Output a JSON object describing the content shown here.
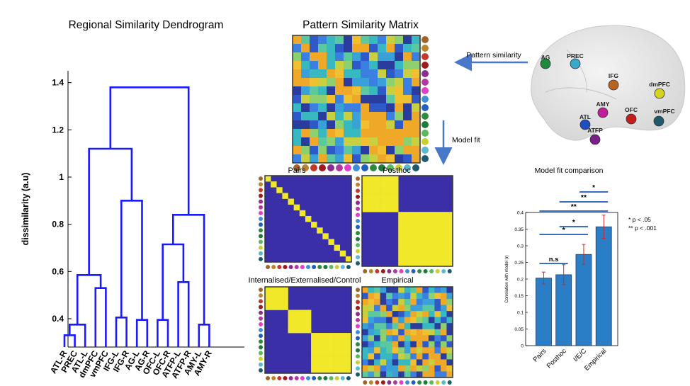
{
  "titles": {
    "dendrogram": "Regional Similarity Dendrogram",
    "matrix": "Pattern Similarity Matrix"
  },
  "arrows": {
    "pattern_similarity": "Pattern similarity",
    "model_fit": "Model fit"
  },
  "brain": {
    "regions": [
      {
        "label": "AG",
        "color": "#1e8a3a"
      },
      {
        "label": "PREC",
        "color": "#3aa9c7"
      },
      {
        "label": "IFG",
        "color": "#b8641e"
      },
      {
        "label": "dmPFC",
        "color": "#d4d41e"
      },
      {
        "label": "AMY",
        "color": "#c21e9c"
      },
      {
        "label": "OFC",
        "color": "#c21e1e"
      },
      {
        "label": "vmPFC",
        "color": "#1e5a6e"
      },
      {
        "label": "ATL",
        "color": "#1e4fc2"
      },
      {
        "label": "ATFP",
        "color": "#7a1e8a"
      }
    ]
  },
  "rdm": {
    "region_colors": [
      "#a0642a",
      "#b8862e",
      "#c0392b",
      "#9b1c1c",
      "#8e2c8e",
      "#b03aa0",
      "#e23ec8",
      "#3f8fd8",
      "#1f5fc0",
      "#2e8b3e",
      "#1e7a3a",
      "#5cb85c",
      "#c8d030",
      "#5ab8d0",
      "#1e5a6e"
    ],
    "small_titles": {
      "pairs": "Pairs",
      "posthoc": "Posthoc",
      "iec": "Internalised/Externalised/Control",
      "empirical": "Empirical"
    }
  },
  "dendrogram": {
    "leaves": [
      "ATL-R",
      "PREC",
      "ATL-L",
      "dmPFC",
      "vmPFC",
      "IFG-L",
      "IFG-R",
      "AG-L",
      "AG-R",
      "OFC-L",
      "OFC-R",
      "ATFP-L",
      "ATFP-R",
      "AMY-L",
      "AMY-R"
    ],
    "ylabel": "dissimilarity (a.u)",
    "yticks": [
      "0.4",
      "0.6",
      "0.8",
      "1",
      "1.2",
      "1.4"
    ],
    "color": "#1a1aff"
  },
  "bar_panel": {
    "title": "Model fit comparison",
    "legend": [
      "* p < .05",
      "** p < .001"
    ],
    "sig_labels": [
      "n.s",
      "*",
      "*",
      "**",
      "**",
      "*"
    ]
  },
  "chart_data": [
    {
      "type": "dendrogram",
      "title": "Regional Similarity Dendrogram",
      "ylabel": "dissimilarity (a.u)",
      "ylim": [
        0.28,
        1.45
      ],
      "leaves": [
        "ATL-R",
        "PREC",
        "ATL-L",
        "dmPFC",
        "vmPFC",
        "IFG-L",
        "IFG-R",
        "AG-L",
        "AG-R",
        "OFC-L",
        "OFC-R",
        "ATFP-L",
        "ATFP-R",
        "AMY-L",
        "AMY-R"
      ],
      "merges": [
        {
          "left": "ATL-R",
          "right": "PREC",
          "height": 0.33
        },
        {
          "left": "m0",
          "right": "ATL-L",
          "height": 0.375
        },
        {
          "left": "dmPFC",
          "right": "vmPFC",
          "height": 0.53
        },
        {
          "left": "m1",
          "right": "m2",
          "height": 0.585
        },
        {
          "left": "IFG-L",
          "right": "IFG-R",
          "height": 0.405
        },
        {
          "left": "AG-L",
          "right": "AG-R",
          "height": 0.395
        },
        {
          "left": "m4",
          "right": "m5",
          "height": 0.9
        },
        {
          "left": "m3",
          "right": "m6",
          "height": 1.12
        },
        {
          "left": "OFC-L",
          "right": "OFC-R",
          "height": 0.395
        },
        {
          "left": "ATFP-L",
          "right": "ATFP-R",
          "height": 0.555
        },
        {
          "left": "m8",
          "right": "m9",
          "height": 0.715
        },
        {
          "left": "AMY-L",
          "right": "AMY-R",
          "height": 0.375
        },
        {
          "left": "m10",
          "right": "m11",
          "height": 0.84
        },
        {
          "left": "m7",
          "right": "m12",
          "height": 1.38
        }
      ]
    },
    {
      "type": "bar",
      "title": "Model fit comparison",
      "ylabel": "Correlation with model (r)",
      "categories": [
        "Pairs",
        "Posthoc",
        "I/E/C",
        "Empirical"
      ],
      "values": [
        0.203,
        0.213,
        0.274,
        0.357
      ],
      "errors": [
        0.018,
        0.03,
        0.03,
        0.035
      ],
      "ylim": [
        0,
        0.4
      ],
      "yticks": [
        "0",
        "0.05",
        "0.1",
        "0.15",
        "0.2",
        "0.25",
        "0.3",
        "0.35",
        "0.4"
      ]
    }
  ]
}
